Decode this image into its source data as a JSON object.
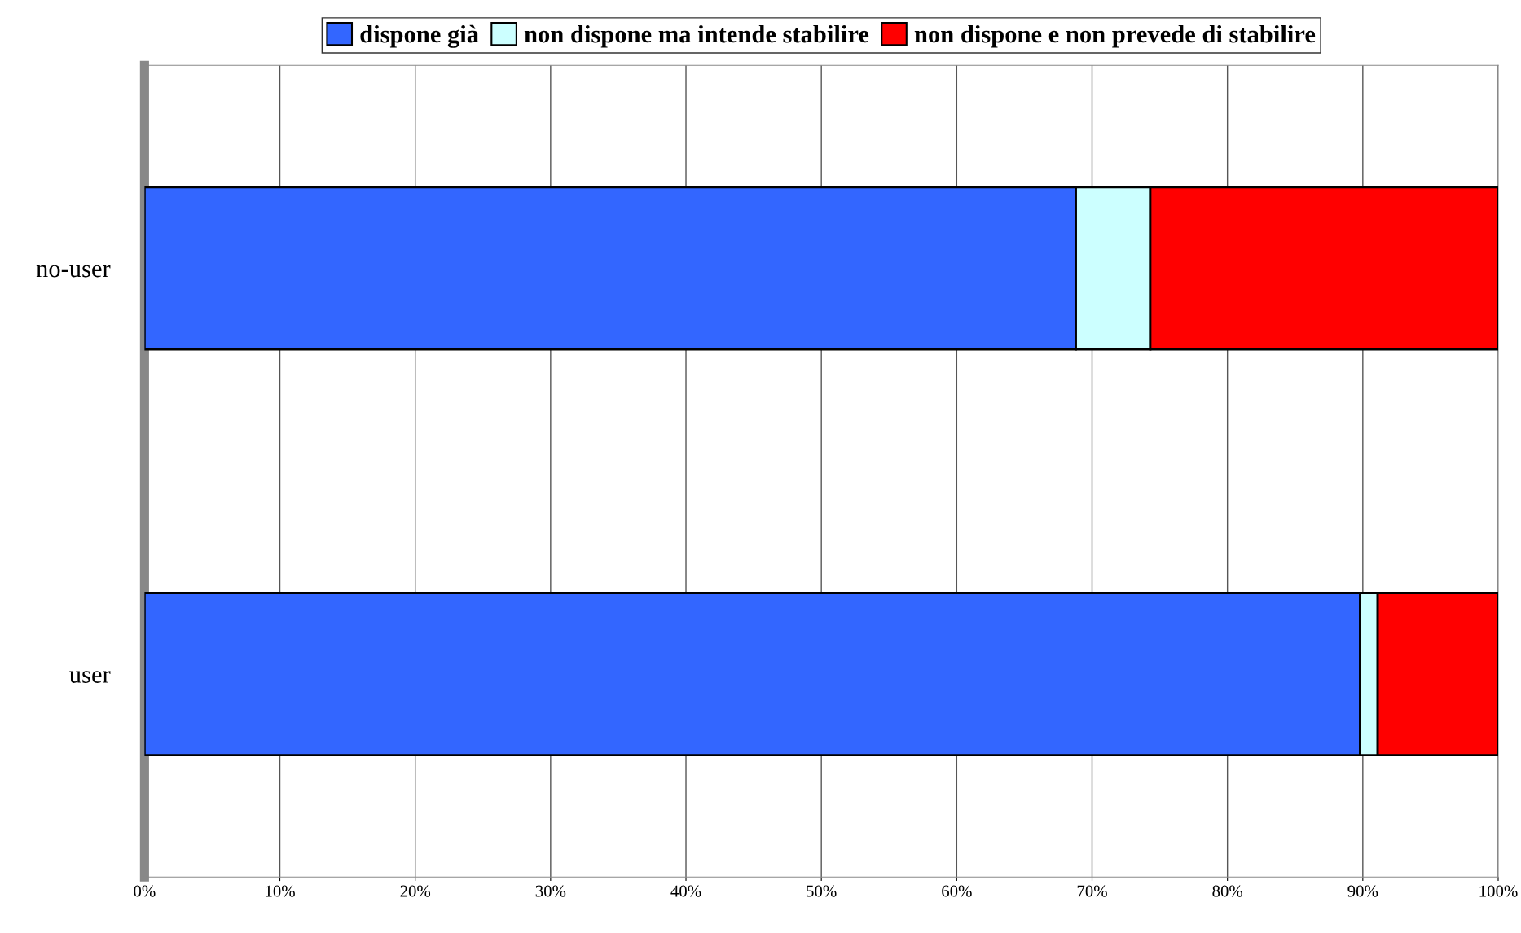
{
  "chart_data": {
    "type": "bar",
    "orientation": "horizontal",
    "stacked": true,
    "categories": [
      "no-user",
      "user"
    ],
    "series": [
      {
        "name": "dispone già",
        "color": "#3366ff",
        "values": [
          68.8,
          89.8
        ]
      },
      {
        "name": "non dispone ma intende stabilire",
        "color": "#ccffff",
        "values": [
          5.5,
          1.3
        ]
      },
      {
        "name": "non dispone e non prevede di stabilire",
        "color": "#ff0000",
        "values": [
          25.7,
          8.9
        ]
      }
    ],
    "xlim": [
      0,
      100
    ],
    "xticks": [
      {
        "value": 0,
        "label": "0%"
      },
      {
        "value": 10,
        "label": "10%"
      },
      {
        "value": 20,
        "label": "20%"
      },
      {
        "value": 30,
        "label": "30%"
      },
      {
        "value": 40,
        "label": "40%"
      },
      {
        "value": 50,
        "label": "50%"
      },
      {
        "value": 60,
        "label": "60%"
      },
      {
        "value": 70,
        "label": "70%"
      },
      {
        "value": 80,
        "label": "80%"
      },
      {
        "value": 90,
        "label": "90%"
      },
      {
        "value": 100,
        "label": "100%"
      }
    ],
    "grid": "x",
    "legend": "top"
  }
}
